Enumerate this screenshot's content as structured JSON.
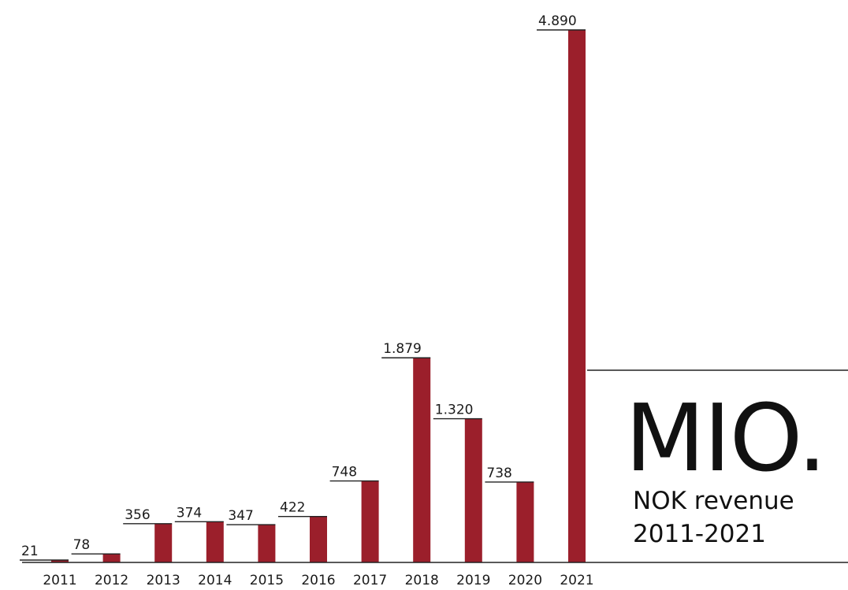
{
  "chart_data": {
    "type": "bar",
    "categories": [
      "2011",
      "2012",
      "2013",
      "2014",
      "2015",
      "2016",
      "2017",
      "2018",
      "2019",
      "2020",
      "2021"
    ],
    "values": [
      21,
      78,
      356,
      374,
      347,
      422,
      748,
      1879,
      1320,
      738,
      4890
    ],
    "value_labels": [
      "21",
      "78",
      "356",
      "374",
      "347",
      "422",
      "748",
      "1.879",
      "1.320",
      "738",
      "4.890"
    ],
    "unit": "MIO.",
    "caption_line1": "NOK revenue",
    "caption_line2": "2011-2021",
    "bar_color": "#9b1f2b",
    "grid": false,
    "legend": "none"
  }
}
